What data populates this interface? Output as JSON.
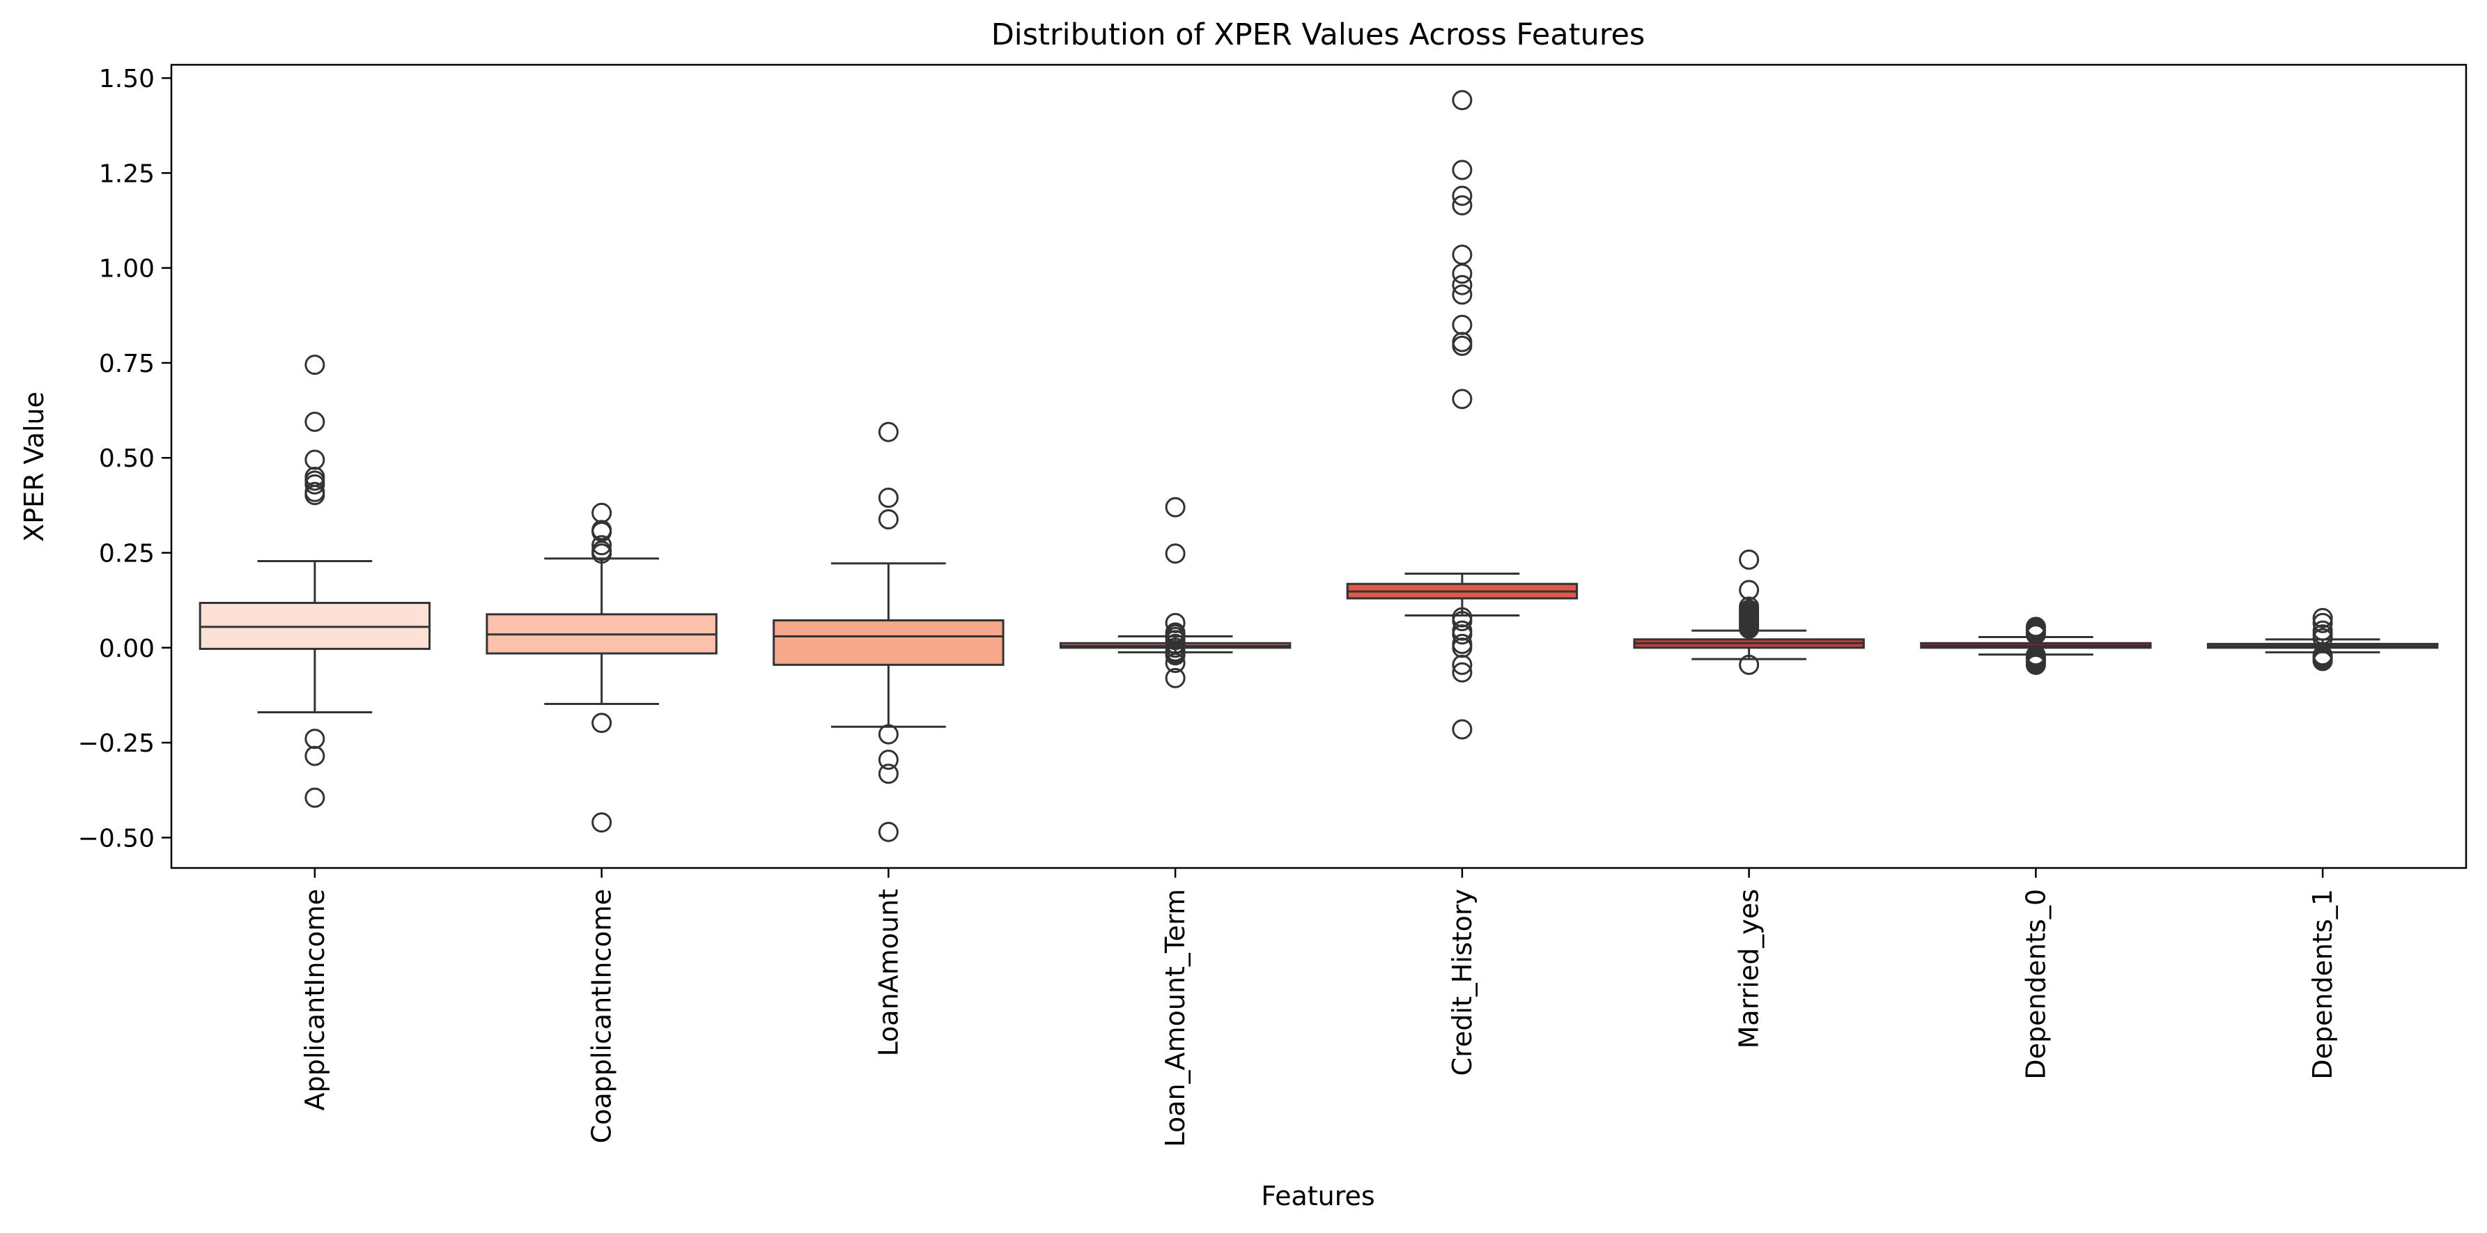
{
  "chart_data": {
    "type": "box",
    "title": "Distribution of XPER Values Across Features",
    "xlabel": "Features",
    "ylabel": "XPER Value",
    "ylim": [
      -0.58,
      1.535
    ],
    "yticks": [
      -0.5,
      -0.25,
      0.0,
      0.25,
      0.5,
      0.75,
      1.0,
      1.25,
      1.5
    ],
    "ytick_labels": [
      "−0.50",
      "−0.25",
      "0.00",
      "0.25",
      "0.50",
      "0.75",
      "1.00",
      "1.25",
      "1.50"
    ],
    "grid": false,
    "categories": [
      "ApplicantIncome",
      "CoapplicantIncome",
      "LoanAmount",
      "Loan_Amount_Term",
      "Credit_History",
      "Married_yes",
      "Dependents_0",
      "Dependents_1"
    ],
    "colors": [
      "#fde1d6",
      "#fcc1aa",
      "#f5a88b",
      "#ef8a6e",
      "#de5a4c",
      "#cc3d38",
      "#b9262c",
      "#a3162b"
    ],
    "box_edge_color": "#333333",
    "boxes": [
      {
        "whisker_low": -0.17,
        "q1": -0.003,
        "median": 0.055,
        "q3": 0.118,
        "whisker_high": 0.228,
        "outliers": [
          0.745,
          0.595,
          0.495,
          0.45,
          0.44,
          0.43,
          0.41,
          0.402,
          -0.24,
          -0.285,
          -0.395
        ]
      },
      {
        "whisker_low": -0.148,
        "q1": -0.015,
        "median": 0.035,
        "q3": 0.088,
        "whisker_high": 0.235,
        "outliers": [
          0.355,
          0.31,
          0.305,
          0.27,
          0.255,
          0.248,
          -0.198,
          -0.46
        ]
      },
      {
        "whisker_low": -0.208,
        "q1": -0.045,
        "median": 0.03,
        "q3": 0.072,
        "whisker_high": 0.222,
        "outliers": [
          0.568,
          0.395,
          0.338,
          -0.228,
          -0.295,
          -0.332,
          -0.485
        ]
      },
      {
        "whisker_low": -0.012,
        "q1": 0.0,
        "median": 0.005,
        "q3": 0.012,
        "whisker_high": 0.03,
        "outliers": [
          0.37,
          0.248,
          0.065,
          0.04,
          0.035,
          0.028,
          0.02,
          0.01,
          0.0,
          -0.01,
          -0.015,
          -0.02,
          -0.04,
          -0.08
        ]
      },
      {
        "whisker_low": 0.085,
        "q1": 0.13,
        "median": 0.148,
        "q3": 0.168,
        "whisker_high": 0.195,
        "outliers": [
          1.442,
          1.258,
          1.19,
          1.165,
          1.035,
          0.985,
          0.955,
          0.93,
          0.85,
          0.805,
          0.795,
          0.655,
          0.08,
          0.07,
          0.045,
          0.035,
          0.01,
          0.0,
          -0.045,
          -0.065,
          -0.215
        ]
      },
      {
        "whisker_low": -0.03,
        "q1": 0.0,
        "median": 0.012,
        "q3": 0.022,
        "whisker_high": 0.045,
        "outliers": [
          0.232,
          0.152,
          0.108,
          0.1,
          0.095,
          0.09,
          0.085,
          0.08,
          0.075,
          0.07,
          0.065,
          0.06,
          0.055,
          0.05,
          -0.045
        ]
      },
      {
        "whisker_low": -0.018,
        "q1": 0.0,
        "median": 0.005,
        "q3": 0.012,
        "whisker_high": 0.028,
        "outliers": [
          0.055,
          0.05,
          0.045,
          0.04,
          0.035,
          -0.02,
          -0.025,
          -0.03,
          -0.035,
          -0.04,
          -0.045
        ]
      },
      {
        "whisker_low": -0.012,
        "q1": 0.0,
        "median": 0.003,
        "q3": 0.01,
        "whisker_high": 0.022,
        "outliers": [
          0.078,
          0.065,
          0.045,
          0.035,
          0.025,
          -0.02,
          -0.025,
          -0.03,
          -0.035
        ]
      }
    ]
  }
}
